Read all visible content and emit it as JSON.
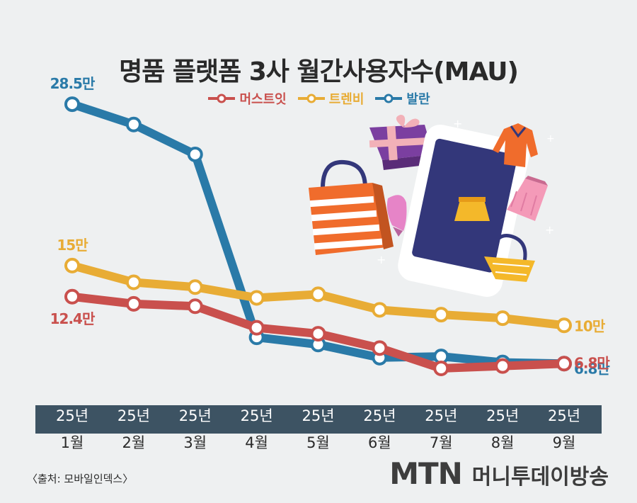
{
  "title": "명품 플랫폼 3사 월간사용자수(MAU)",
  "colors": {
    "mustit": "#c9504d",
    "trenbi": "#e8ac35",
    "balaan": "#2a7aa8",
    "axis_band": "#3d5363"
  },
  "chart_data": {
    "type": "line",
    "title": "명품 플랫폼 3사 월간사용자수(MAU)",
    "categories": [
      {
        "top": "25년",
        "bottom": "1월"
      },
      {
        "top": "25년",
        "bottom": "2월"
      },
      {
        "top": "25년",
        "bottom": "3월"
      },
      {
        "top": "25년",
        "bottom": "4월"
      },
      {
        "top": "25년",
        "bottom": "5월"
      },
      {
        "top": "25년",
        "bottom": "6월"
      },
      {
        "top": "25년",
        "bottom": "7월"
      },
      {
        "top": "25년",
        "bottom": "8월"
      },
      {
        "top": "25년",
        "bottom": "9월"
      }
    ],
    "series": [
      {
        "name": "발란",
        "color": "#2a7aa8",
        "values": [
          28.5,
          26.8,
          24.3,
          9.0,
          8.4,
          7.3,
          7.4,
          6.9,
          6.8
        ],
        "labels": [
          {
            "index": 0,
            "text": "28.5만"
          },
          {
            "index": 8,
            "text": "6.8만"
          }
        ]
      },
      {
        "name": "트렌비",
        "color": "#e8ac35",
        "values": [
          15.0,
          13.6,
          13.2,
          12.3,
          12.6,
          11.3,
          10.9,
          10.6,
          10.0
        ],
        "labels": [
          {
            "index": 0,
            "text": "15만"
          },
          {
            "index": 8,
            "text": "10만"
          }
        ]
      },
      {
        "name": "머스트잇",
        "color": "#c9504d",
        "values": [
          12.4,
          11.8,
          11.6,
          9.8,
          9.3,
          8.1,
          6.4,
          6.6,
          6.8
        ],
        "labels": [
          {
            "index": 0,
            "text": "12.4만"
          },
          {
            "index": 8,
            "text": "6.8만"
          }
        ]
      }
    ],
    "legend_order": [
      "머스트잇",
      "트렌비",
      "발란"
    ],
    "ylim": [
      0,
      32
    ],
    "grid": false,
    "legend_position": "top-center"
  },
  "source_text": "〈출처: 모바일인덱스〉",
  "brand": {
    "logo": "MTN",
    "name": "머니투데이방송"
  }
}
